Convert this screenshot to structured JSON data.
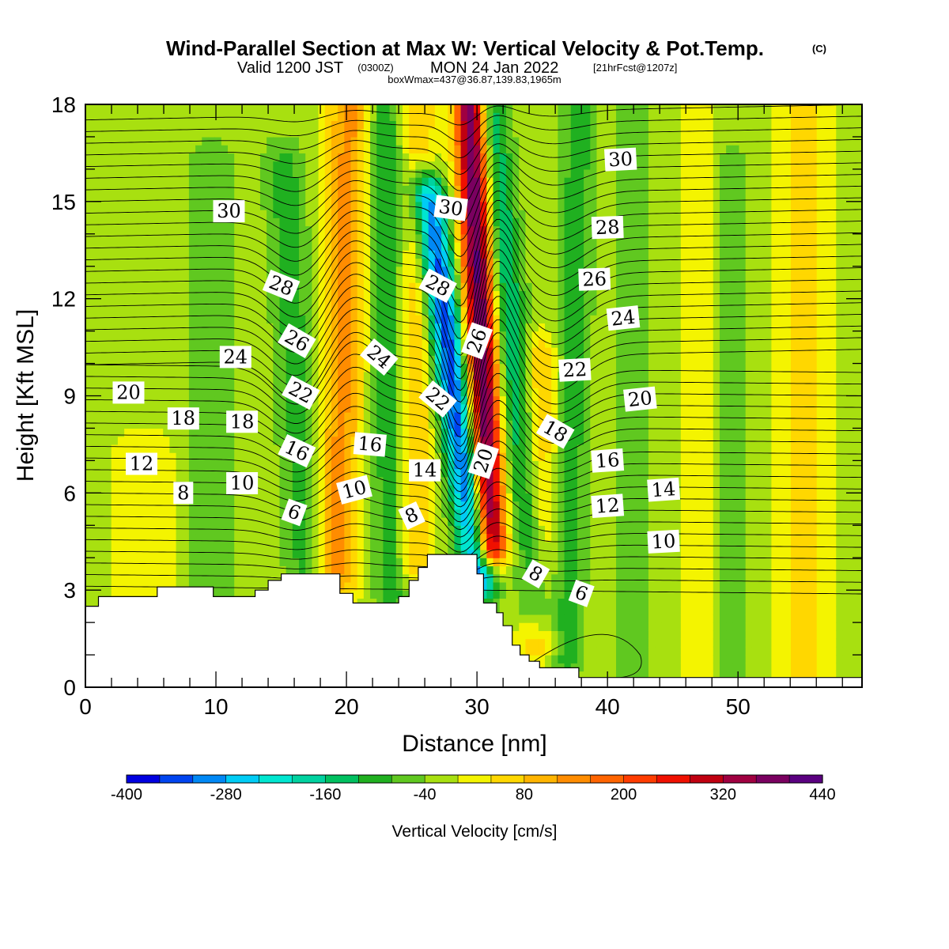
{
  "title": {
    "main": "Wind-Parallel Section at Max W: Vertical Velocity & Pot.Temp.",
    "copyright": "(C)",
    "valid_prefix": "Valid 1200 JST",
    "valid_utc": "(0300Z)",
    "valid_date": "MON 24 Jan 2022",
    "forecast": "[21hrFcst@1207z]",
    "boxinfo": "boxWmax=437@36.87,139.83,1965m"
  },
  "chart_data": {
    "type": "heatmap",
    "xlabel": "Distance [nm]",
    "ylabel": "Height [Kft MSL]",
    "xlim": [
      0,
      59.5
    ],
    "ylim": [
      0,
      18
    ],
    "x_ticks": [
      0,
      10,
      20,
      30,
      40,
      50
    ],
    "y_ticks": [
      0,
      3,
      6,
      9,
      12,
      15,
      18
    ],
    "colorbar": {
      "title": "Vertical Velocity [cm/s]",
      "tick_labels": [
        "-400",
        "-280",
        "-160",
        "-40",
        "80",
        "200",
        "320",
        "440"
      ],
      "levels": [
        -400,
        -360,
        -320,
        -280,
        -240,
        -200,
        -160,
        -120,
        -80,
        -40,
        0,
        40,
        80,
        120,
        160,
        200,
        240,
        280,
        320,
        360,
        400,
        440
      ],
      "colors": [
        "#0000e0",
        "#0044f0",
        "#0088f5",
        "#00ccf5",
        "#00e6d0",
        "#00d2a0",
        "#00c060",
        "#20b020",
        "#60c820",
        "#a8e010",
        "#f4f400",
        "#ffd700",
        "#ffb400",
        "#ff8c00",
        "#ff6400",
        "#ff3c00",
        "#f01000",
        "#c00010",
        "#a00040",
        "#7a0060",
        "#5a0080"
      ]
    },
    "contour_variable": "potential temperature",
    "contour_labels": [
      {
        "text": "30",
        "x": 11.0,
        "y": 14.7,
        "rot": 0
      },
      {
        "text": "30",
        "x": 28.0,
        "y": 14.8,
        "rot": 8
      },
      {
        "text": "30",
        "x": 41.0,
        "y": 16.3,
        "rot": -3
      },
      {
        "text": "28",
        "x": 15.0,
        "y": 12.4,
        "rot": 22
      },
      {
        "text": "28",
        "x": 27.0,
        "y": 12.4,
        "rot": 28
      },
      {
        "text": "28",
        "x": 40.0,
        "y": 14.2,
        "rot": -2
      },
      {
        "text": "26",
        "x": 16.2,
        "y": 10.7,
        "rot": 30
      },
      {
        "text": "26",
        "x": 30.0,
        "y": 10.7,
        "rot": -70
      },
      {
        "text": "26",
        "x": 39.0,
        "y": 12.6,
        "rot": -2
      },
      {
        "text": "24",
        "x": 11.5,
        "y": 10.2,
        "rot": 0
      },
      {
        "text": "24",
        "x": 22.5,
        "y": 10.2,
        "rot": 40
      },
      {
        "text": "24",
        "x": 41.2,
        "y": 11.4,
        "rot": -6
      },
      {
        "text": "22",
        "x": 16.5,
        "y": 9.1,
        "rot": 28
      },
      {
        "text": "22",
        "x": 27.0,
        "y": 8.9,
        "rot": 40
      },
      {
        "text": "22",
        "x": 37.5,
        "y": 9.8,
        "rot": -3
      },
      {
        "text": "20",
        "x": 3.3,
        "y": 9.1,
        "rot": 0
      },
      {
        "text": "20",
        "x": 30.5,
        "y": 7.0,
        "rot": -72
      },
      {
        "text": "20",
        "x": 42.5,
        "y": 8.9,
        "rot": -6
      },
      {
        "text": "18",
        "x": 7.5,
        "y": 8.3,
        "rot": 0
      },
      {
        "text": "18",
        "x": 12.0,
        "y": 8.2,
        "rot": 0
      },
      {
        "text": "18",
        "x": 36.0,
        "y": 7.9,
        "rot": 30
      },
      {
        "text": "16",
        "x": 16.2,
        "y": 7.3,
        "rot": 25
      },
      {
        "text": "16",
        "x": 21.8,
        "y": 7.5,
        "rot": 5
      },
      {
        "text": "16",
        "x": 40.0,
        "y": 7.0,
        "rot": -4
      },
      {
        "text": "14",
        "x": 26.0,
        "y": 6.7,
        "rot": 0
      },
      {
        "text": "14",
        "x": 44.3,
        "y": 6.1,
        "rot": -4
      },
      {
        "text": "12",
        "x": 4.3,
        "y": 6.9,
        "rot": 0
      },
      {
        "text": "12",
        "x": 40.0,
        "y": 5.6,
        "rot": -4
      },
      {
        "text": "10",
        "x": 12.0,
        "y": 6.3,
        "rot": 0
      },
      {
        "text": "10",
        "x": 20.6,
        "y": 6.1,
        "rot": -15
      },
      {
        "text": "10",
        "x": 44.3,
        "y": 4.5,
        "rot": -3
      },
      {
        "text": "8",
        "x": 7.5,
        "y": 6.0,
        "rot": 0
      },
      {
        "text": "8",
        "x": 25.0,
        "y": 5.3,
        "rot": -25
      },
      {
        "text": "8",
        "x": 34.5,
        "y": 3.5,
        "rot": 30
      },
      {
        "text": "6",
        "x": 16.0,
        "y": 5.4,
        "rot": 20
      },
      {
        "text": "6",
        "x": 38.0,
        "y": 2.9,
        "rot": 20
      }
    ],
    "terrain": [
      [
        0,
        2.5
      ],
      [
        1,
        2.5
      ],
      [
        1,
        2.8
      ],
      [
        5.5,
        2.8
      ],
      [
        5.5,
        3.1
      ],
      [
        9.8,
        3.1
      ],
      [
        9.8,
        2.8
      ],
      [
        13,
        2.8
      ],
      [
        13,
        3.0
      ],
      [
        14,
        3.0
      ],
      [
        14,
        3.3
      ],
      [
        15,
        3.3
      ],
      [
        15,
        3.5
      ],
      [
        19.5,
        3.5
      ],
      [
        19.5,
        2.9
      ],
      [
        20.5,
        2.9
      ],
      [
        20.5,
        2.6
      ],
      [
        24,
        2.6
      ],
      [
        24,
        2.8
      ],
      [
        24.8,
        2.8
      ],
      [
        24.8,
        3.3
      ],
      [
        25.5,
        3.3
      ],
      [
        25.5,
        3.7
      ],
      [
        26.2,
        3.7
      ],
      [
        26.2,
        4.1
      ],
      [
        30,
        4.1
      ],
      [
        30,
        3.5
      ],
      [
        30.5,
        3.5
      ],
      [
        30.5,
        2.6
      ],
      [
        31.5,
        2.6
      ],
      [
        31.5,
        2.3
      ],
      [
        32,
        2.3
      ],
      [
        32,
        1.9
      ],
      [
        32.7,
        1.9
      ],
      [
        32.7,
        1.3
      ],
      [
        33.3,
        1.3
      ],
      [
        33.3,
        1.0
      ],
      [
        34,
        1.0
      ],
      [
        34,
        0.8
      ],
      [
        34.8,
        0.8
      ],
      [
        34.8,
        0.6
      ],
      [
        37.8,
        0.6
      ],
      [
        37.8,
        0.3
      ],
      [
        59.5,
        0.3
      ],
      [
        59.5,
        0
      ],
      [
        0,
        0
      ]
    ]
  }
}
